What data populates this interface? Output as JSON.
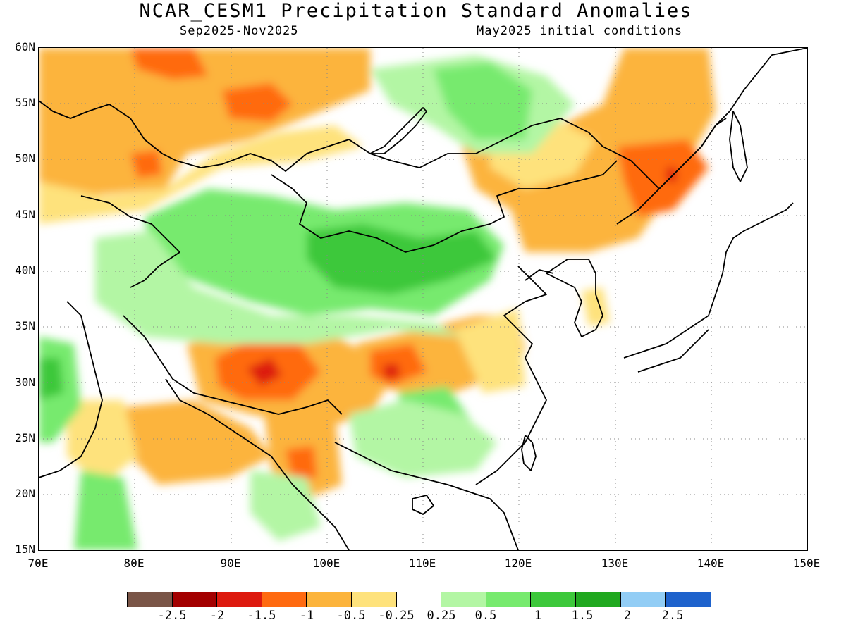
{
  "header": {
    "title": "NCAR_CESM1 Precipitation Standard Anomalies",
    "period": "Sep2025-Nov2025",
    "init": "May2025 initial conditions"
  },
  "axes": {
    "lat_labels": [
      "60N",
      "55N",
      "50N",
      "45N",
      "40N",
      "35N",
      "30N",
      "25N",
      "20N",
      "15N"
    ],
    "lon_labels": [
      "70E",
      "80E",
      "90E",
      "100E",
      "110E",
      "120E",
      "130E",
      "140E",
      "150E"
    ]
  },
  "colorbar": {
    "colors": [
      "#7a5547",
      "#a30000",
      "#dd1a0e",
      "#ff6a10",
      "#fcb43c",
      "#fee27c",
      "#ffffff",
      "#b3f6a4",
      "#77ea6e",
      "#3dc83b",
      "#20a81f",
      "#92cdf5",
      "#1e62cc"
    ],
    "labels": [
      "-2.5",
      "-2",
      "-1.5",
      "-1",
      "-0.5",
      "-0.25",
      "0.25",
      "0.5",
      "1",
      "1.5",
      "2",
      "2.5"
    ]
  }
}
